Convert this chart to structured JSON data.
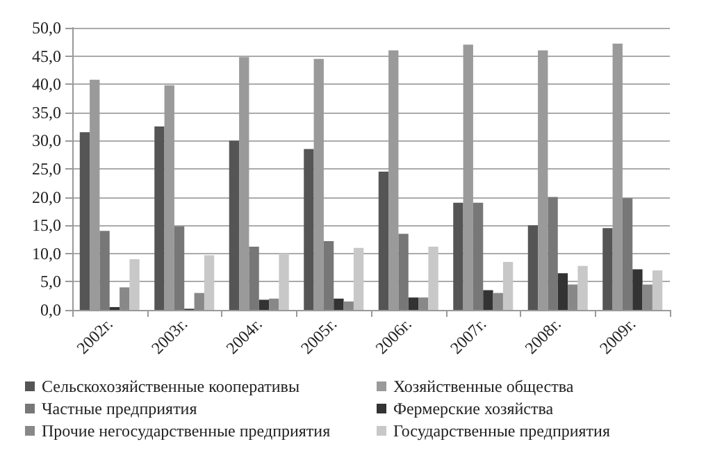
{
  "chart_data": {
    "type": "bar",
    "categories": [
      "2002г.",
      "2003г.",
      "2004г.",
      "2005г.",
      "2006г.",
      "2007г.",
      "2008г.",
      "2009г."
    ],
    "series": [
      {
        "name": "Сельскохозяйственные кооперативы",
        "color": "#555555",
        "values": [
          31.5,
          32.5,
          30.0,
          28.5,
          24.5,
          19.0,
          15.0,
          14.5
        ]
      },
      {
        "name": "Хозяйственные общества",
        "color": "#9a9a9a",
        "values": [
          40.8,
          39.8,
          44.8,
          44.5,
          46.0,
          47.0,
          46.0,
          47.2
        ]
      },
      {
        "name": "Частные предприятия",
        "color": "#777777",
        "values": [
          14.0,
          14.8,
          11.2,
          12.2,
          13.5,
          19.0,
          20.0,
          19.8
        ]
      },
      {
        "name": "Фермерские хозяйства",
        "color": "#333333",
        "values": [
          0.5,
          0.2,
          1.8,
          2.0,
          2.2,
          3.5,
          6.5,
          7.2
        ]
      },
      {
        "name": "Прочие негосударственные предприятия",
        "color": "#888888",
        "values": [
          4.0,
          3.0,
          2.0,
          1.5,
          2.2,
          3.0,
          4.5,
          4.5
        ]
      },
      {
        "name": "Государственные предприятия",
        "color": "#c8c8c8",
        "values": [
          9.0,
          9.7,
          10.0,
          11.0,
          11.2,
          8.5,
          7.8,
          7.0
        ]
      }
    ],
    "ylim": [
      0,
      50
    ],
    "yticks": [
      {
        "value": 0,
        "label": "0,0"
      },
      {
        "value": 5,
        "label": "5,0"
      },
      {
        "value": 10,
        "label": "10,0"
      },
      {
        "value": 15,
        "label": "15,0"
      },
      {
        "value": 20,
        "label": "20,0"
      },
      {
        "value": 25,
        "label": "25,0"
      },
      {
        "value": 30,
        "label": "30,0"
      },
      {
        "value": 35,
        "label": "35,0"
      },
      {
        "value": 40,
        "label": "40,0"
      },
      {
        "value": 45,
        "label": "45,0"
      },
      {
        "value": 50,
        "label": "50,0"
      }
    ],
    "grid": "y",
    "legend": "bottom"
  }
}
